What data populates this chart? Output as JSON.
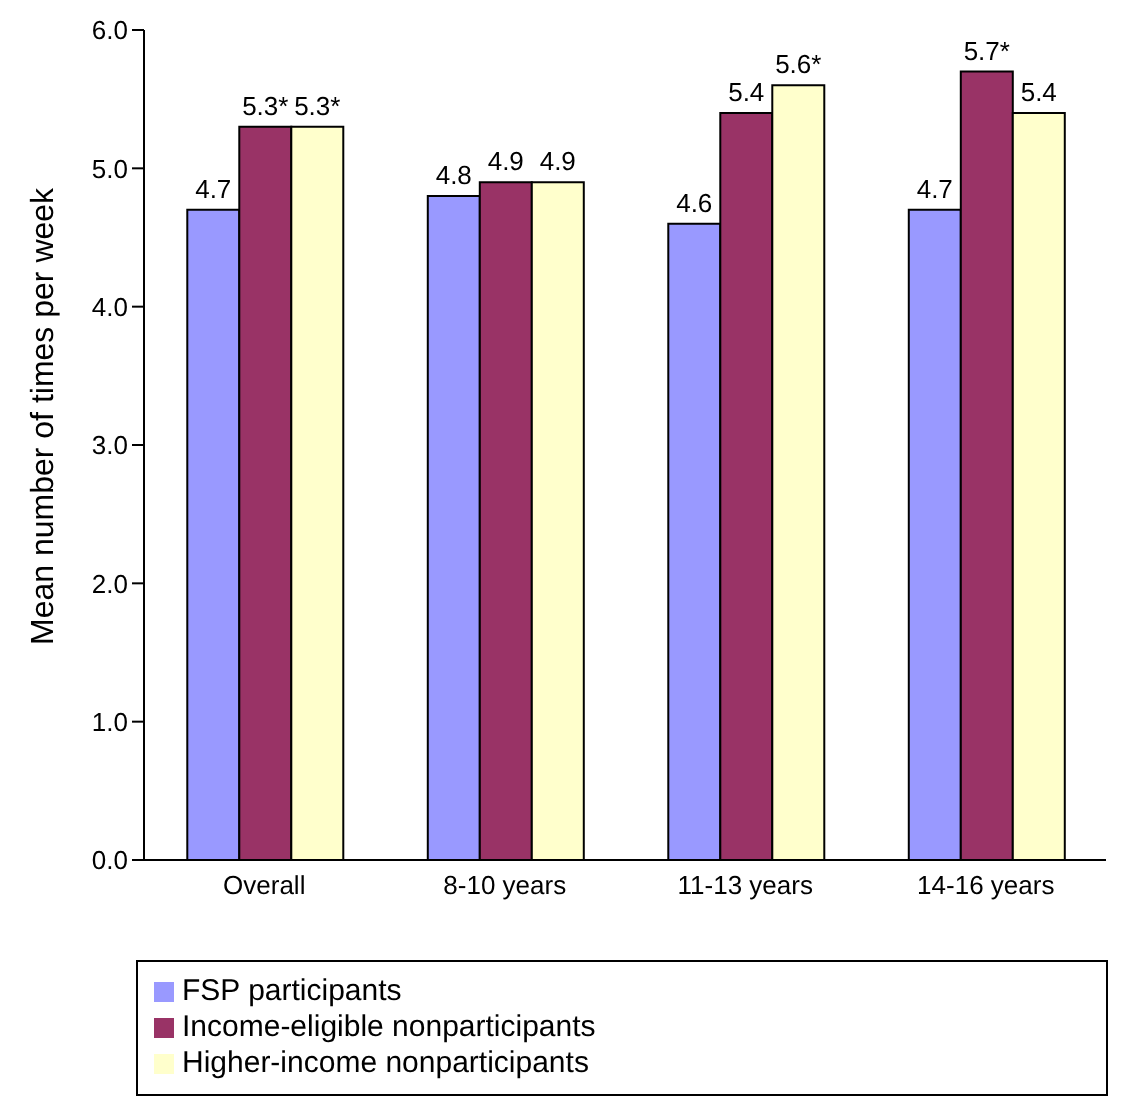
{
  "chart_data": {
    "type": "bar",
    "ylabel": "Mean number of times per week",
    "categories": [
      "Overall",
      "8-10 years",
      "11-13 years",
      "14-16 years"
    ],
    "series": [
      {
        "name": "FSP participants",
        "color": "#9999ff",
        "values": [
          4.7,
          4.8,
          4.6,
          4.7
        ],
        "value_labels": [
          "4.7",
          "4.8",
          "4.6",
          "4.7"
        ]
      },
      {
        "name": "Income-eligible nonparticipants",
        "color": "#993366",
        "values": [
          5.3,
          4.9,
          5.4,
          5.7
        ],
        "value_labels": [
          "5.3*",
          "4.9",
          "5.4",
          "5.7*"
        ]
      },
      {
        "name": "Higher-income nonparticipants",
        "color": "#ffffcc",
        "values": [
          5.3,
          4.9,
          5.6,
          5.4
        ],
        "value_labels": [
          "5.3*",
          "4.9",
          "5.6*",
          "5.4"
        ]
      }
    ],
    "ylim": [
      0,
      6
    ],
    "yticks": [
      {
        "value": 0,
        "label": "0.0"
      },
      {
        "value": 1,
        "label": "1.0"
      },
      {
        "value": 2,
        "label": "2.0"
      },
      {
        "value": 3,
        "label": "3.0"
      },
      {
        "value": 4,
        "label": "4.0"
      },
      {
        "value": 5,
        "label": "5.0"
      },
      {
        "value": 6,
        "label": "6.0"
      }
    ],
    "grid": false,
    "legend": "bottom"
  }
}
